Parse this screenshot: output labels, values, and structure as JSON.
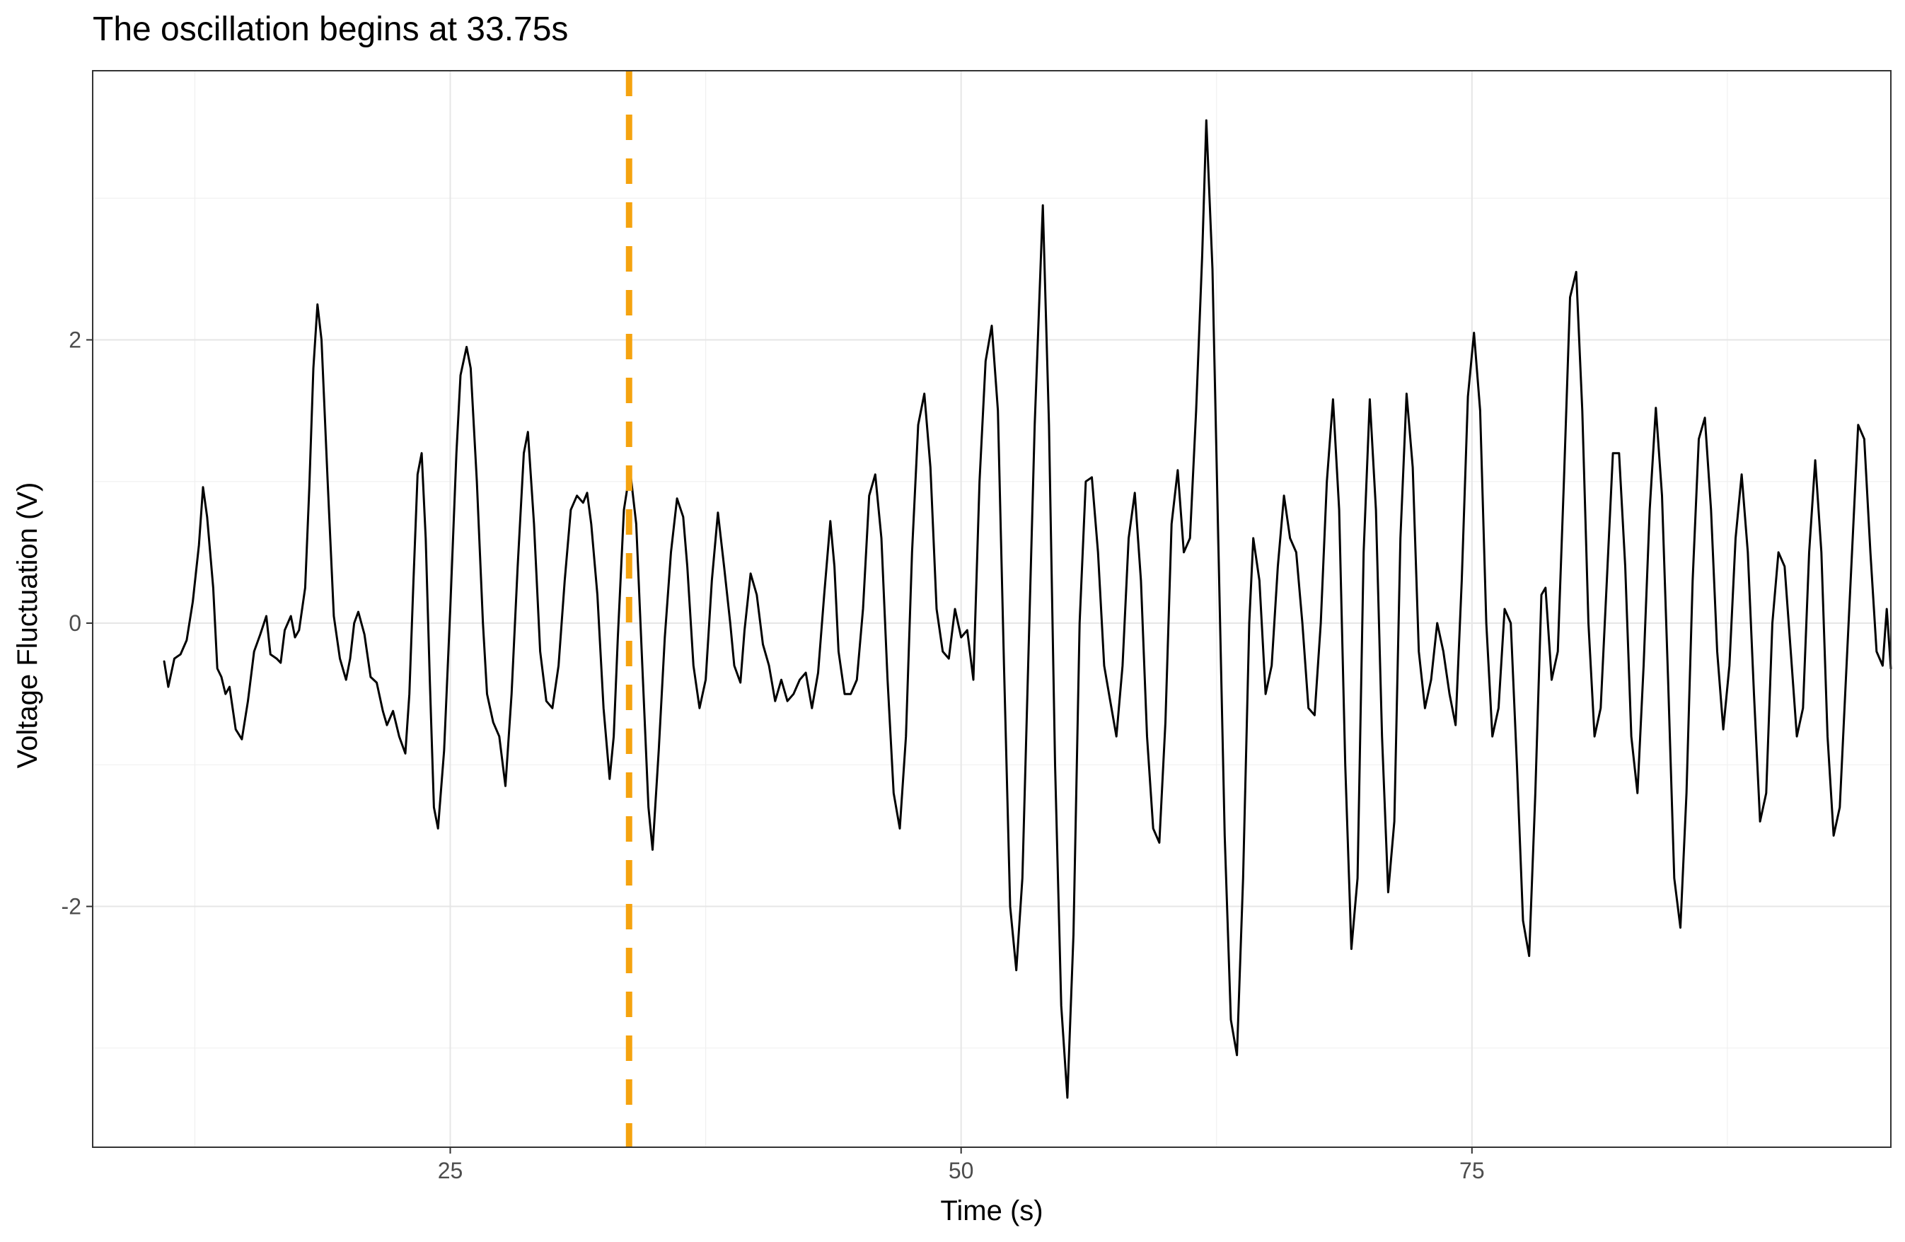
{
  "chart_data": {
    "type": "line",
    "title": "The oscillation begins at 33.75s",
    "xlabel": "Time (s)",
    "ylabel": "Voltage Fluctuation (V)",
    "xlim": [
      7.5,
      95.5
    ],
    "ylim": [
      -3.7,
      3.9
    ],
    "x_ticks": [
      25,
      50,
      75
    ],
    "x_tick_labels": [
      "25",
      "50",
      "75"
    ],
    "y_ticks": [
      -2,
      0,
      2
    ],
    "y_tick_labels": [
      "-2",
      "0",
      "2"
    ],
    "grid": true,
    "legend": "none",
    "vline": {
      "x": 33.75,
      "style": "dashed",
      "color": "#F5A30F"
    },
    "series": [
      {
        "color": "#000000",
        "points": [
          [
            11.0,
            -0.27
          ],
          [
            11.2,
            -0.45
          ],
          [
            11.5,
            -0.25
          ],
          [
            11.8,
            -0.22
          ],
          [
            12.1,
            -0.12
          ],
          [
            12.4,
            0.15
          ],
          [
            12.7,
            0.55
          ],
          [
            12.9,
            0.96
          ],
          [
            13.1,
            0.75
          ],
          [
            13.4,
            0.25
          ],
          [
            13.6,
            -0.32
          ],
          [
            13.8,
            -0.38
          ],
          [
            14.0,
            -0.5
          ],
          [
            14.2,
            -0.45
          ],
          [
            14.5,
            -0.75
          ],
          [
            14.8,
            -0.82
          ],
          [
            15.1,
            -0.55
          ],
          [
            15.4,
            -0.2
          ],
          [
            15.7,
            -0.08
          ],
          [
            16.0,
            0.05
          ],
          [
            16.2,
            -0.22
          ],
          [
            16.5,
            -0.25
          ],
          [
            16.7,
            -0.28
          ],
          [
            16.9,
            -0.05
          ],
          [
            17.2,
            0.05
          ],
          [
            17.4,
            -0.1
          ],
          [
            17.6,
            -0.05
          ],
          [
            17.9,
            0.25
          ],
          [
            18.1,
            0.95
          ],
          [
            18.3,
            1.8
          ],
          [
            18.5,
            2.25
          ],
          [
            18.7,
            2.0
          ],
          [
            19.0,
            1.0
          ],
          [
            19.3,
            0.05
          ],
          [
            19.6,
            -0.25
          ],
          [
            19.9,
            -0.4
          ],
          [
            20.1,
            -0.25
          ],
          [
            20.3,
            0.0
          ],
          [
            20.5,
            0.08
          ],
          [
            20.8,
            -0.08
          ],
          [
            21.1,
            -0.38
          ],
          [
            21.4,
            -0.42
          ],
          [
            21.7,
            -0.62
          ],
          [
            21.9,
            -0.72
          ],
          [
            22.2,
            -0.62
          ],
          [
            22.5,
            -0.8
          ],
          [
            22.8,
            -0.92
          ],
          [
            23.0,
            -0.5
          ],
          [
            23.2,
            0.3
          ],
          [
            23.4,
            1.05
          ],
          [
            23.6,
            1.2
          ],
          [
            23.8,
            0.6
          ],
          [
            24.0,
            -0.4
          ],
          [
            24.2,
            -1.3
          ],
          [
            24.4,
            -1.45
          ],
          [
            24.7,
            -0.9
          ],
          [
            25.0,
            0.1
          ],
          [
            25.3,
            1.2
          ],
          [
            25.5,
            1.75
          ],
          [
            25.8,
            1.95
          ],
          [
            26.0,
            1.8
          ],
          [
            26.3,
            1.0
          ],
          [
            26.6,
            0.0
          ],
          [
            26.8,
            -0.5
          ],
          [
            27.1,
            -0.7
          ],
          [
            27.4,
            -0.8
          ],
          [
            27.7,
            -1.15
          ],
          [
            28.0,
            -0.5
          ],
          [
            28.3,
            0.4
          ],
          [
            28.6,
            1.2
          ],
          [
            28.8,
            1.35
          ],
          [
            29.1,
            0.7
          ],
          [
            29.4,
            -0.2
          ],
          [
            29.7,
            -0.55
          ],
          [
            30.0,
            -0.6
          ],
          [
            30.3,
            -0.3
          ],
          [
            30.6,
            0.3
          ],
          [
            30.9,
            0.8
          ],
          [
            31.2,
            0.9
          ],
          [
            31.5,
            0.85
          ],
          [
            31.7,
            0.92
          ],
          [
            31.9,
            0.7
          ],
          [
            32.2,
            0.2
          ],
          [
            32.5,
            -0.6
          ],
          [
            32.8,
            -1.1
          ],
          [
            33.0,
            -0.8
          ],
          [
            33.2,
            -0.1
          ],
          [
            33.5,
            0.8
          ],
          [
            33.8,
            1.08
          ],
          [
            34.1,
            0.7
          ],
          [
            34.4,
            -0.3
          ],
          [
            34.7,
            -1.3
          ],
          [
            34.9,
            -1.6
          ],
          [
            35.2,
            -0.9
          ],
          [
            35.5,
            -0.1
          ],
          [
            35.8,
            0.5
          ],
          [
            36.1,
            0.88
          ],
          [
            36.4,
            0.75
          ],
          [
            36.6,
            0.4
          ],
          [
            36.9,
            -0.3
          ],
          [
            37.2,
            -0.6
          ],
          [
            37.5,
            -0.4
          ],
          [
            37.8,
            0.3
          ],
          [
            38.1,
            0.78
          ],
          [
            38.4,
            0.4
          ],
          [
            38.7,
            0.0
          ],
          [
            38.9,
            -0.3
          ],
          [
            39.2,
            -0.42
          ],
          [
            39.4,
            -0.05
          ],
          [
            39.7,
            0.35
          ],
          [
            40.0,
            0.2
          ],
          [
            40.3,
            -0.15
          ],
          [
            40.6,
            -0.3
          ],
          [
            40.9,
            -0.55
          ],
          [
            41.2,
            -0.4
          ],
          [
            41.5,
            -0.55
          ],
          [
            41.8,
            -0.5
          ],
          [
            42.1,
            -0.4
          ],
          [
            42.4,
            -0.35
          ],
          [
            42.7,
            -0.6
          ],
          [
            43.0,
            -0.35
          ],
          [
            43.3,
            0.2
          ],
          [
            43.6,
            0.72
          ],
          [
            43.8,
            0.4
          ],
          [
            44.0,
            -0.2
          ],
          [
            44.3,
            -0.5
          ],
          [
            44.6,
            -0.5
          ],
          [
            44.9,
            -0.4
          ],
          [
            45.2,
            0.1
          ],
          [
            45.5,
            0.9
          ],
          [
            45.8,
            1.05
          ],
          [
            46.1,
            0.6
          ],
          [
            46.4,
            -0.4
          ],
          [
            46.7,
            -1.2
          ],
          [
            47.0,
            -1.45
          ],
          [
            47.3,
            -0.8
          ],
          [
            47.6,
            0.5
          ],
          [
            47.9,
            1.4
          ],
          [
            48.2,
            1.62
          ],
          [
            48.5,
            1.1
          ],
          [
            48.8,
            0.1
          ],
          [
            49.1,
            -0.2
          ],
          [
            49.4,
            -0.25
          ],
          [
            49.7,
            0.1
          ],
          [
            50.0,
            -0.1
          ],
          [
            50.3,
            -0.05
          ],
          [
            50.6,
            -0.4
          ],
          [
            50.9,
            1.0
          ],
          [
            51.2,
            1.85
          ],
          [
            51.5,
            2.1
          ],
          [
            51.8,
            1.5
          ],
          [
            52.1,
            -0.3
          ],
          [
            52.4,
            -2.0
          ],
          [
            52.7,
            -2.45
          ],
          [
            53.0,
            -1.8
          ],
          [
            53.3,
            -0.2
          ],
          [
            53.6,
            1.4
          ],
          [
            54.0,
            2.95
          ],
          [
            54.3,
            1.4
          ],
          [
            54.6,
            -1.0
          ],
          [
            54.9,
            -2.7
          ],
          [
            55.2,
            -3.35
          ],
          [
            55.5,
            -2.2
          ],
          [
            55.8,
            0.0
          ],
          [
            56.1,
            1.0
          ],
          [
            56.4,
            1.03
          ],
          [
            56.7,
            0.5
          ],
          [
            57.0,
            -0.3
          ],
          [
            57.3,
            -0.55
          ],
          [
            57.6,
            -0.8
          ],
          [
            57.9,
            -0.3
          ],
          [
            58.2,
            0.6
          ],
          [
            58.5,
            0.92
          ],
          [
            58.8,
            0.3
          ],
          [
            59.1,
            -0.8
          ],
          [
            59.4,
            -1.45
          ],
          [
            59.7,
            -1.55
          ],
          [
            60.0,
            -0.7
          ],
          [
            60.3,
            0.7
          ],
          [
            60.6,
            1.08
          ],
          [
            60.9,
            0.5
          ],
          [
            61.2,
            0.6
          ],
          [
            61.5,
            1.5
          ],
          [
            61.8,
            2.6
          ],
          [
            62.0,
            3.55
          ],
          [
            62.3,
            2.5
          ],
          [
            62.6,
            0.5
          ],
          [
            62.9,
            -1.5
          ],
          [
            63.2,
            -2.8
          ],
          [
            63.5,
            -3.05
          ],
          [
            63.8,
            -1.8
          ],
          [
            64.1,
            0.0
          ],
          [
            64.3,
            0.6
          ],
          [
            64.6,
            0.3
          ],
          [
            64.9,
            -0.5
          ],
          [
            65.2,
            -0.3
          ],
          [
            65.5,
            0.4
          ],
          [
            65.8,
            0.9
          ],
          [
            66.1,
            0.6
          ],
          [
            66.4,
            0.5
          ],
          [
            66.7,
            0.0
          ],
          [
            67.0,
            -0.6
          ],
          [
            67.3,
            -0.65
          ],
          [
            67.6,
            0.0
          ],
          [
            67.9,
            1.0
          ],
          [
            68.2,
            1.58
          ],
          [
            68.5,
            0.8
          ],
          [
            68.8,
            -1.0
          ],
          [
            69.1,
            -2.3
          ],
          [
            69.4,
            -1.8
          ],
          [
            69.7,
            0.5
          ],
          [
            70.0,
            1.58
          ],
          [
            70.3,
            0.8
          ],
          [
            70.6,
            -0.8
          ],
          [
            70.9,
            -1.9
          ],
          [
            71.2,
            -1.4
          ],
          [
            71.5,
            0.6
          ],
          [
            71.8,
            1.62
          ],
          [
            72.1,
            1.1
          ],
          [
            72.4,
            -0.2
          ],
          [
            72.7,
            -0.6
          ],
          [
            73.0,
            -0.4
          ],
          [
            73.3,
            0.0
          ],
          [
            73.6,
            -0.2
          ],
          [
            73.9,
            -0.5
          ],
          [
            74.2,
            -0.72
          ],
          [
            74.5,
            0.3
          ],
          [
            74.8,
            1.6
          ],
          [
            75.1,
            2.05
          ],
          [
            75.4,
            1.5
          ],
          [
            75.7,
            0.0
          ],
          [
            76.0,
            -0.8
          ],
          [
            76.3,
            -0.6
          ],
          [
            76.6,
            0.1
          ],
          [
            76.9,
            0.0
          ],
          [
            77.2,
            -1.0
          ],
          [
            77.5,
            -2.1
          ],
          [
            77.8,
            -2.35
          ],
          [
            78.1,
            -1.2
          ],
          [
            78.4,
            0.2
          ],
          [
            78.6,
            0.25
          ],
          [
            78.9,
            -0.4
          ],
          [
            79.2,
            -0.2
          ],
          [
            79.5,
            1.0
          ],
          [
            79.8,
            2.3
          ],
          [
            80.1,
            2.48
          ],
          [
            80.4,
            1.5
          ],
          [
            80.7,
            0.0
          ],
          [
            81.0,
            -0.8
          ],
          [
            81.3,
            -0.6
          ],
          [
            81.6,
            0.3
          ],
          [
            81.9,
            1.2
          ],
          [
            82.2,
            1.2
          ],
          [
            82.5,
            0.4
          ],
          [
            82.8,
            -0.8
          ],
          [
            83.1,
            -1.2
          ],
          [
            83.4,
            -0.3
          ],
          [
            83.7,
            0.8
          ],
          [
            84.0,
            1.52
          ],
          [
            84.3,
            0.9
          ],
          [
            84.6,
            -0.4
          ],
          [
            84.9,
            -1.8
          ],
          [
            85.2,
            -2.15
          ],
          [
            85.5,
            -1.2
          ],
          [
            85.8,
            0.3
          ],
          [
            86.1,
            1.3
          ],
          [
            86.4,
            1.45
          ],
          [
            86.7,
            0.8
          ],
          [
            87.0,
            -0.2
          ],
          [
            87.3,
            -0.75
          ],
          [
            87.6,
            -0.3
          ],
          [
            87.9,
            0.6
          ],
          [
            88.2,
            1.05
          ],
          [
            88.5,
            0.5
          ],
          [
            88.8,
            -0.5
          ],
          [
            89.1,
            -1.4
          ],
          [
            89.4,
            -1.2
          ],
          [
            89.7,
            0.0
          ],
          [
            90.0,
            0.5
          ],
          [
            90.3,
            0.4
          ],
          [
            90.6,
            -0.2
          ],
          [
            90.9,
            -0.8
          ],
          [
            91.2,
            -0.6
          ],
          [
            91.5,
            0.5
          ],
          [
            91.8,
            1.15
          ],
          [
            92.1,
            0.5
          ],
          [
            92.4,
            -0.8
          ],
          [
            92.7,
            -1.5
          ],
          [
            93.0,
            -1.3
          ],
          [
            93.3,
            -0.4
          ],
          [
            93.6,
            0.5
          ],
          [
            93.9,
            1.4
          ],
          [
            94.2,
            1.3
          ],
          [
            94.5,
            0.5
          ],
          [
            94.8,
            -0.2
          ],
          [
            95.1,
            -0.3
          ],
          [
            95.3,
            0.1
          ],
          [
            95.5,
            -0.32
          ]
        ]
      }
    ]
  }
}
